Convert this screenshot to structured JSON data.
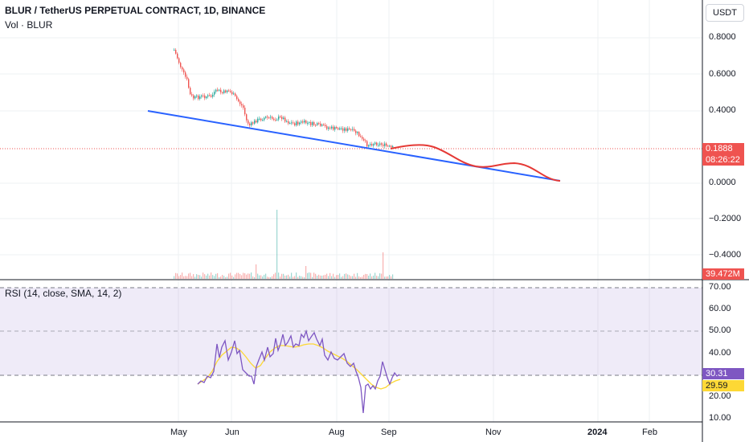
{
  "header": {
    "title": "BLUR / TetherUS PERPETUAL CONTRACT, 1D, BINANCE",
    "volume_label": "Vol · BLUR",
    "currency_button": "USDT"
  },
  "price_axis": {
    "ticks": [
      "0.8000",
      "0.6000",
      "0.4000",
      "0.0000",
      "−0.2000",
      "−0.4000"
    ],
    "last_price": "0.1888",
    "countdown": "08:26:22",
    "volume_value": "39.472M"
  },
  "rsi": {
    "label": "RSI (14, close, SMA, 14, 2)",
    "ticks": [
      "70.00",
      "60.00",
      "50.00",
      "40.00",
      "20.00",
      "10.00"
    ],
    "rsi_value": "30.31",
    "sma_value": "29.59"
  },
  "time_axis": {
    "ticks": [
      "May",
      "Jun",
      "Aug",
      "Sep",
      "Nov",
      "2024",
      "Feb"
    ]
  },
  "colors": {
    "up": "#26a69a",
    "down": "#ef5350",
    "trendline": "#2962ff",
    "projection": "#e53935",
    "rsi_line": "#7e57c2",
    "rsi_sma": "#fdd835",
    "rsi_band": "#7e57c2"
  }
}
